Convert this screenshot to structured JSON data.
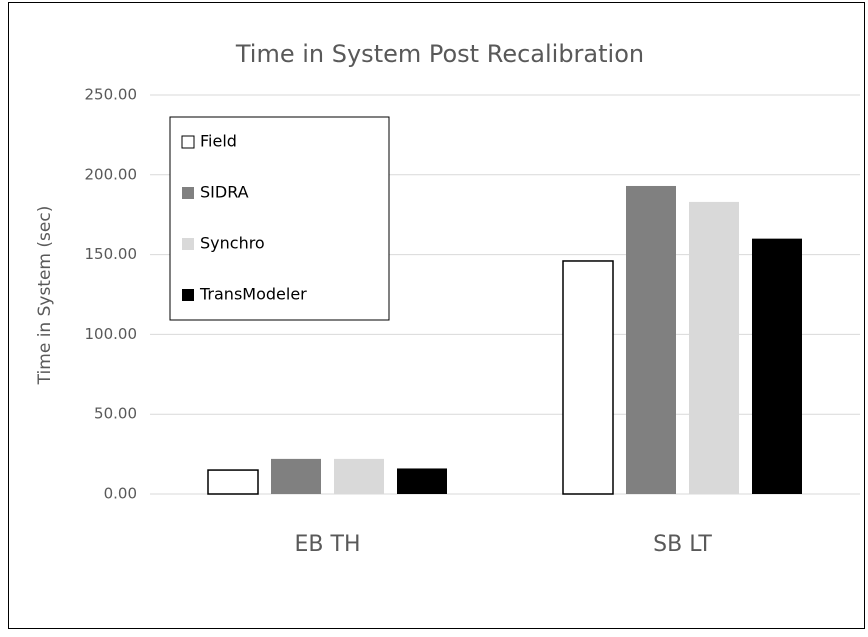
{
  "chart_data": {
    "type": "bar",
    "title": "Time in System Post Recalibration",
    "y_label": "Time in System (sec)",
    "categories": [
      "EB TH",
      "SB LT"
    ],
    "series": [
      {
        "name": "Field",
        "color": "#ffffff",
        "values": [
          15,
          146
        ]
      },
      {
        "name": "SIDRA",
        "color": "#808080",
        "values": [
          22,
          193
        ]
      },
      {
        "name": "Synchro",
        "color": "#d9d9d9",
        "values": [
          22,
          183
        ]
      },
      {
        "name": "TransModeler",
        "color": "#000000",
        "values": [
          16,
          160
        ]
      }
    ],
    "ylim": [
      0,
      250
    ],
    "yticks": [
      {
        "value": 0,
        "label": "0.00"
      },
      {
        "value": 50,
        "label": "50.00"
      },
      {
        "value": 100,
        "label": "100.00"
      },
      {
        "value": 150,
        "label": "150.00"
      },
      {
        "value": 200,
        "label": "200.00"
      },
      {
        "value": 250,
        "label": "250.00"
      }
    ],
    "grid": true,
    "legend": "upper left"
  }
}
